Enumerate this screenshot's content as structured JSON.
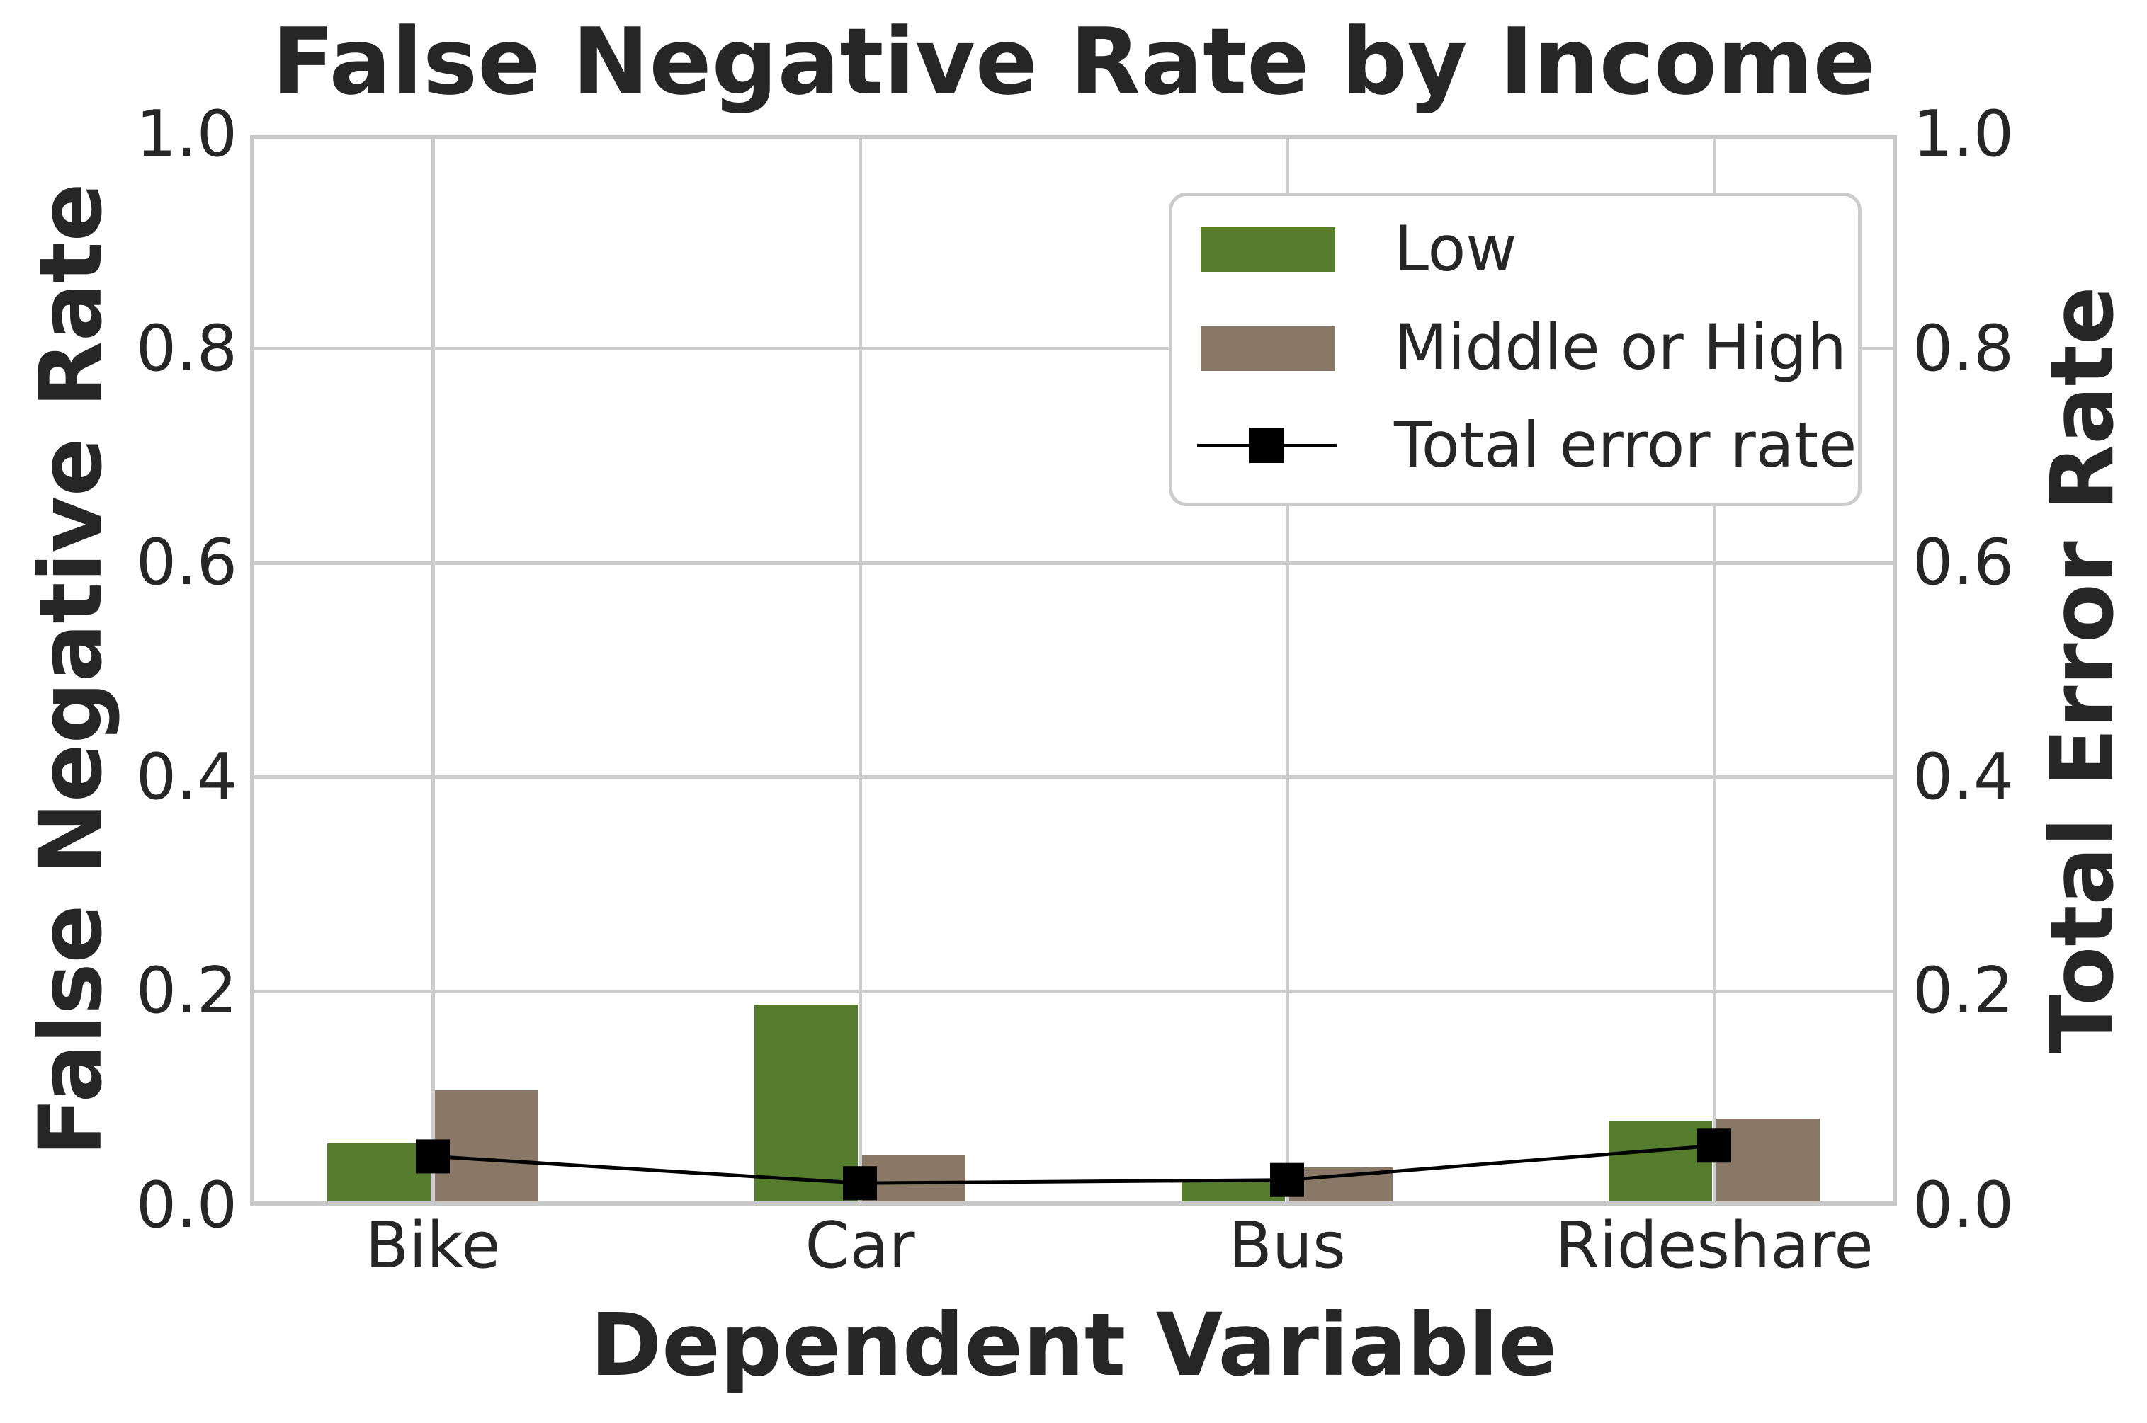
{
  "chart_data": {
    "type": "bar",
    "title": "False Negative Rate by Income",
    "xlabel": "Dependent Variable",
    "ylabel_left": "False Negative Rate",
    "ylabel_right": "Total Error Rate",
    "categories": [
      "Bike",
      "Car",
      "Bus",
      "Rideshare"
    ],
    "series": [
      {
        "name": "Low",
        "color": "#567d2e",
        "values": [
          0.058,
          0.188,
          0.022,
          0.079
        ]
      },
      {
        "name": "Middle or High",
        "color": "#8a7867",
        "values": [
          0.108,
          0.047,
          0.036,
          0.081
        ]
      }
    ],
    "line_series": {
      "name": "Total error rate",
      "color": "#000000",
      "values": [
        0.046,
        0.021,
        0.024,
        0.056
      ]
    },
    "ylim": [
      0.0,
      1.0
    ],
    "yticks": [
      "0.0",
      "0.2",
      "0.4",
      "0.6",
      "0.8",
      "1.0"
    ],
    "grid": true,
    "legend_position": "upper right"
  },
  "colors": {
    "low": "#567d2e",
    "middle_or_high": "#8a7867",
    "line": "#000000",
    "grid": "#cccccc",
    "spine": "#c8c8c8",
    "text": "#262626",
    "background": "#ffffff"
  }
}
